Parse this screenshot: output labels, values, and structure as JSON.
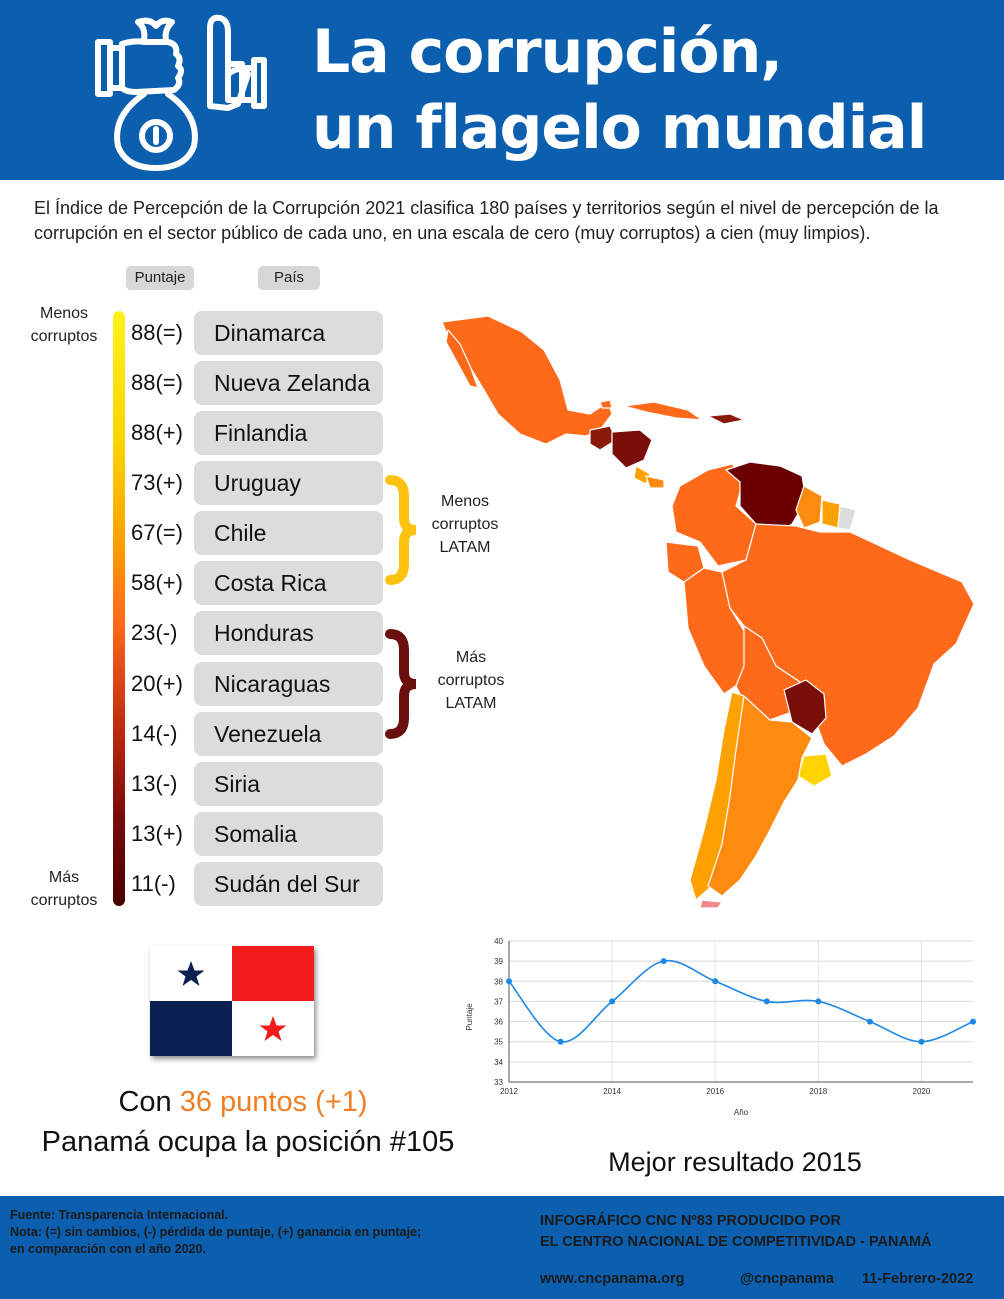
{
  "header": {
    "title_line1": "La corrupción,",
    "title_line2": "un flagelo mundial",
    "icon": "hand-money-bag-and-stop-hand-icon"
  },
  "intro": "El Índice de Percepción de la Corrupción 2021 clasifica 180 países y territorios según el nivel  de percepción de la corrupción en  el sector público de cada uno, en una escala de cero (muy corruptos) a cien (muy limpios).",
  "ranking": {
    "score_header": "Puntaje",
    "country_header": "País",
    "top_label_1": "Menos",
    "top_label_2": "corruptos",
    "bottom_label_1": "Más",
    "bottom_label_2": "corruptos",
    "rows": [
      {
        "score": "88(=)",
        "country": "Dinamarca"
      },
      {
        "score": "88(=)",
        "country": "Nueva Zelanda"
      },
      {
        "score": "88(+)",
        "country": "Finlandia"
      },
      {
        "score": "73(+)",
        "country": "Uruguay"
      },
      {
        "score": "67(=)",
        "country": "Chile"
      },
      {
        "score": "58(+)",
        "country": "Costa Rica"
      },
      {
        "score": "23(-)",
        "country": "Honduras"
      },
      {
        "score": "20(+)",
        "country": "Nicaraguas"
      },
      {
        "score": "14(-)",
        "country": "Venezuela"
      },
      {
        "score": "13(-)",
        "country": "Siria"
      },
      {
        "score": "13(+)",
        "country": "Somalia"
      },
      {
        "score": "11(-)",
        "country": "Sudán del Sur"
      }
    ],
    "latam_less_1": "Menos",
    "latam_less_2": "corruptos",
    "latam_less_3": "LATAM",
    "latam_more_1": "Más",
    "latam_more_2": "corruptos",
    "latam_more_3": "LATAM"
  },
  "map": {
    "icon": "latin-america-corruption-map",
    "colors": {
      "lightest": "#ffd400",
      "light": "#ffa200",
      "mid": "#ff6a1a",
      "dark": "#8b1a0a",
      "darkest": "#6a0000"
    }
  },
  "panama": {
    "prefix": "Con ",
    "points": "36 puntos (+1)",
    "rank_text": "Panamá ocupa la posición #105",
    "flag_icon": "panama-flag-icon"
  },
  "chart_caption": "Mejor resultado  2015",
  "chart_data": {
    "type": "line",
    "title": "",
    "xlabel": "Año",
    "ylabel": "Puntaje",
    "x": [
      2012,
      2013,
      2014,
      2015,
      2016,
      2017,
      2018,
      2019,
      2020,
      2021
    ],
    "values": [
      38,
      35,
      37,
      39,
      38,
      37,
      37,
      36,
      35,
      36
    ],
    "xlim": [
      2012,
      2021
    ],
    "ylim": [
      33,
      40
    ],
    "x_ticks": [
      2012,
      2014,
      2016,
      2018,
      2020
    ],
    "y_ticks": [
      33,
      34,
      35,
      36,
      37,
      38,
      39,
      40
    ],
    "grid": true,
    "color": "#1e88e5"
  },
  "footer": {
    "source": "Fuente: Transparencia Internacional.",
    "note_1": "Nota: (=) sin cambios, (-) pérdida de puntaje, (+) ganancia en puntaje;",
    "note_2": "en comparación con el año 2020.",
    "credit_1": "INFOGRÁFICO CNC Nº83 PRODUCIDO POR",
    "credit_2": "EL CENTRO NACIONAL DE COMPETITIVIDAD - PANAMÁ",
    "website": "www.cncpanama.org",
    "handle": "@cncpanama",
    "date": "11-Febrero-2022"
  }
}
